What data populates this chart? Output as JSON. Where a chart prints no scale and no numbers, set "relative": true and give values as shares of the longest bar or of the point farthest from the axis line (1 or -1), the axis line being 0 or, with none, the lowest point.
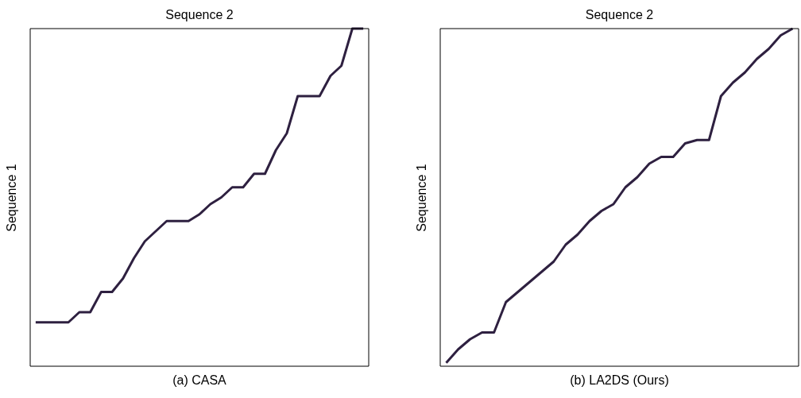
{
  "chart_data": [
    {
      "type": "line",
      "title": "Sequence 2",
      "ylabel": "Sequence 1",
      "xlabel": "(a) CASA",
      "relative": true,
      "grid": false,
      "legend": false,
      "categories": [
        null,
        null,
        null,
        null,
        null,
        null,
        null,
        null,
        null,
        null,
        null,
        null,
        null,
        null,
        null,
        null,
        null,
        null,
        null,
        null,
        null,
        null,
        null,
        null,
        null,
        null,
        null,
        null,
        null,
        null,
        null
      ],
      "series": [
        {
          "color": "#2e2040",
          "values": [
            0.13,
            0.13,
            0.13,
            0.13,
            0.16,
            0.16,
            0.22,
            0.22,
            0.26,
            0.32,
            0.37,
            0.4,
            0.43,
            0.43,
            0.43,
            0.45,
            0.48,
            0.5,
            0.53,
            0.53,
            0.57,
            0.57,
            0.64,
            0.69,
            0.8,
            0.8,
            0.8,
            0.86,
            0.89,
            1,
            1
          ]
        }
      ]
    },
    {
      "type": "line",
      "title": "Sequence 2",
      "ylabel": "Sequence 1",
      "xlabel": "(b) LA2DS (Ours)",
      "relative": true,
      "grid": false,
      "legend": false,
      "categories": [
        null,
        null,
        null,
        null,
        null,
        null,
        null,
        null,
        null,
        null,
        null,
        null,
        null,
        null,
        null,
        null,
        null,
        null,
        null,
        null,
        null,
        null,
        null,
        null,
        null,
        null,
        null,
        null,
        null,
        null
      ],
      "series": [
        {
          "color": "#2e2040",
          "values": [
            0.01,
            0.05,
            0.08,
            0.1,
            0.1,
            0.19,
            0.22,
            0.25,
            0.28,
            0.31,
            0.36,
            0.39,
            0.43,
            0.46,
            0.48,
            0.53,
            0.56,
            0.6,
            0.62,
            0.62,
            0.66,
            0.67,
            0.67,
            0.8,
            0.84,
            0.87,
            0.91,
            0.94,
            0.98,
            1
          ]
        }
      ]
    }
  ]
}
